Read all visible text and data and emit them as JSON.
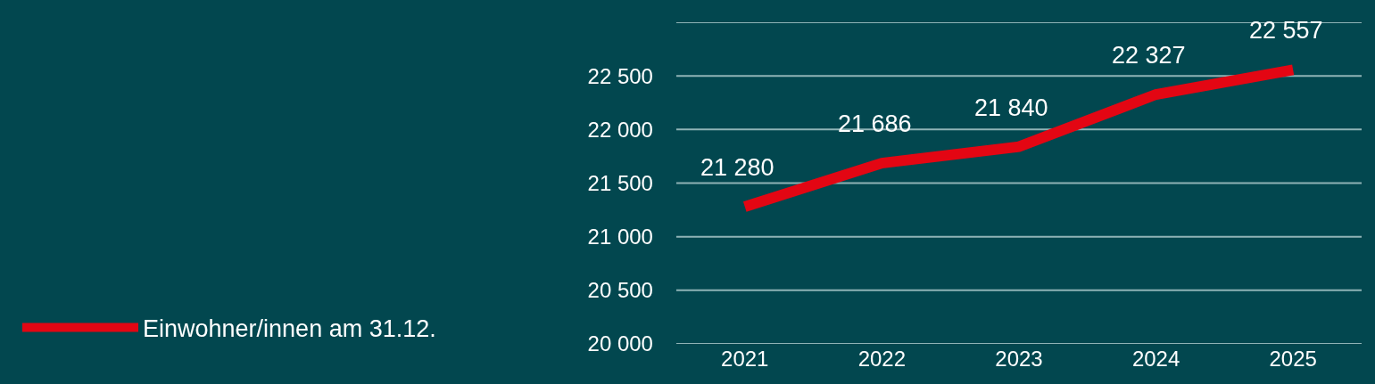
{
  "chart_data": {
    "type": "line",
    "categories": [
      "2021",
      "2022",
      "2023",
      "2024",
      "2025"
    ],
    "series": [
      {
        "name": "Einwohner/innen am 31.12.",
        "color": "#e30613",
        "values": [
          21280,
          21686,
          21840,
          22327,
          22557
        ]
      }
    ],
    "value_labels": [
      "21 280",
      "21 686",
      "21 840",
      "22 327",
      "22 557"
    ],
    "ylim": [
      20000,
      23000
    ],
    "yticks": [
      {
        "value": 20000,
        "label": "20 000"
      },
      {
        "value": 20500,
        "label": "20 500"
      },
      {
        "value": 21000,
        "label": "21 000"
      },
      {
        "value": 21500,
        "label": "21 500"
      },
      {
        "value": 22000,
        "label": "22 000"
      },
      {
        "value": 22500,
        "label": "22 500"
      },
      {
        "value": 23000,
        "label": null
      }
    ],
    "grid": "y",
    "legend": "bottom left",
    "marker": "none",
    "line_style": "solid"
  }
}
